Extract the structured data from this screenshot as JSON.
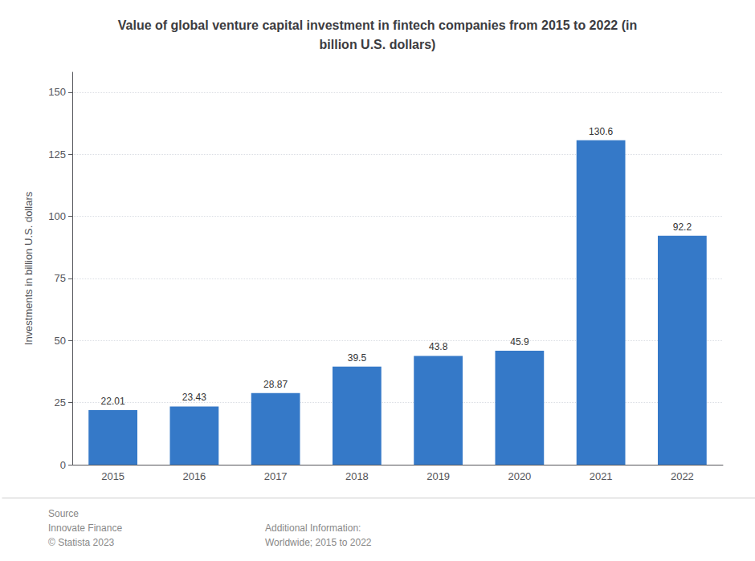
{
  "chart_data": {
    "type": "bar",
    "title": "Value of global venture capital investment in fintech companies from 2015 to 2022 (in\nbillion U.S. dollars)",
    "y_label": "Investments in billion U.S. dollars",
    "categories": [
      "2015",
      "2016",
      "2017",
      "2018",
      "2019",
      "2020",
      "2021",
      "2022"
    ],
    "values": [
      22.01,
      23.43,
      28.87,
      39.5,
      43.8,
      45.9,
      130.6,
      92.2
    ],
    "color": "#3579c8",
    "ylim": [
      0,
      158
    ],
    "yticks": [
      0,
      25,
      50,
      75,
      100,
      125,
      150
    ],
    "grid": true,
    "data_labels": true,
    "annotations": [
      "Source\nInnovate Finance\n© Statista 2023",
      "Additional Information:\nWorldwide; 2015 to 2022"
    ]
  }
}
